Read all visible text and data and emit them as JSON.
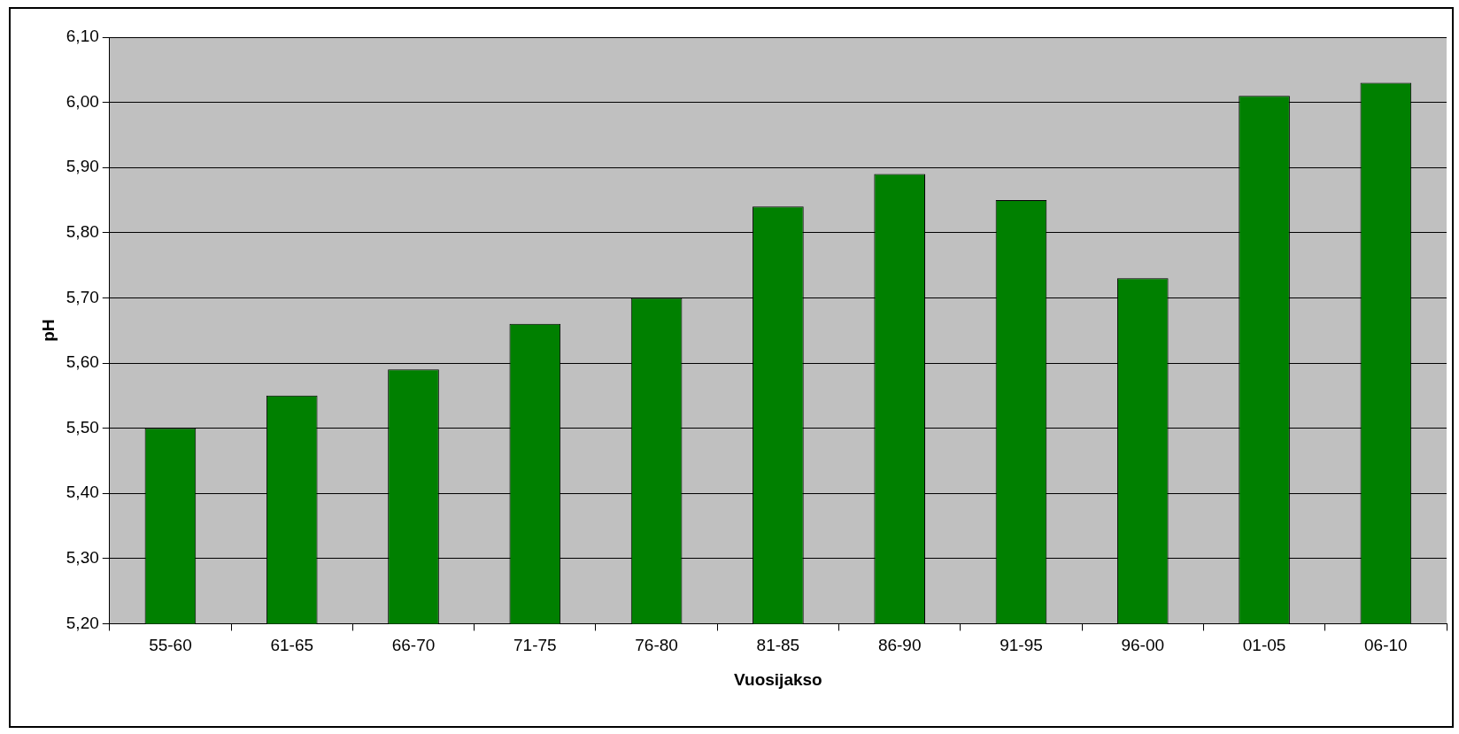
{
  "chart_data": {
    "type": "bar",
    "xlabel": "Vuosijakso",
    "ylabel": "pH",
    "categories": [
      "55-60",
      "61-65",
      "66-70",
      "71-75",
      "76-80",
      "81-85",
      "86-90",
      "91-95",
      "96-00",
      "01-05",
      "06-10"
    ],
    "values": [
      5.5,
      5.55,
      5.59,
      5.66,
      5.7,
      5.84,
      5.89,
      5.85,
      5.73,
      6.01,
      6.03
    ],
    "color": "#008000",
    "ylim": [
      5.2,
      6.1
    ],
    "yticks": [
      {
        "value": 5.2,
        "label": "5,20"
      },
      {
        "value": 5.3,
        "label": "5,30"
      },
      {
        "value": 5.4,
        "label": "5,40"
      },
      {
        "value": 5.5,
        "label": "5,50"
      },
      {
        "value": 5.6,
        "label": "5,60"
      },
      {
        "value": 5.7,
        "label": "5,70"
      },
      {
        "value": 5.8,
        "label": "5,80"
      },
      {
        "value": 5.9,
        "label": "5,90"
      },
      {
        "value": 6.0,
        "label": "6,00"
      },
      {
        "value": 6.1,
        "label": "6,10"
      }
    ],
    "grid": "y",
    "legend": false
  }
}
